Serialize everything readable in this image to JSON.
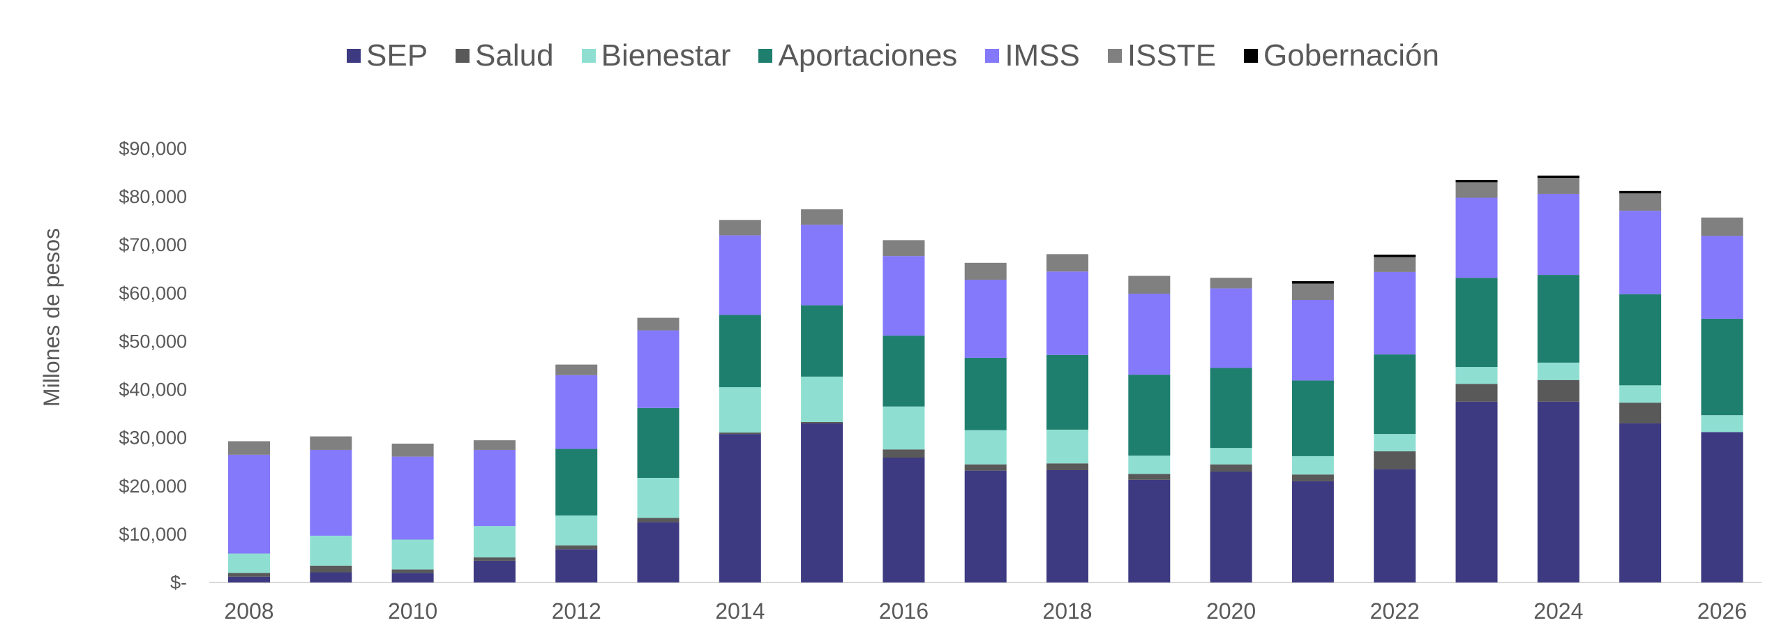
{
  "chart_data": {
    "type": "bar",
    "stacked": true,
    "title": "",
    "xlabel": "",
    "ylabel": "Millones de pesos",
    "ylim": [
      0,
      90000
    ],
    "yticks": [
      0,
      10000,
      20000,
      30000,
      40000,
      50000,
      60000,
      70000,
      80000,
      90000
    ],
    "ytick_labels": [
      "$-",
      "$10,000",
      "$20,000",
      "$30,000",
      "$40,000",
      "$50,000",
      "$60,000",
      "$70,000",
      "$80,000",
      "$90,000"
    ],
    "categories": [
      "2008",
      "2009",
      "2010",
      "2011",
      "2012",
      "2013",
      "2014",
      "2015",
      "2016",
      "2017",
      "2018",
      "2019",
      "2020",
      "2021",
      "2022",
      "2023",
      "2024",
      "2025",
      "2026"
    ],
    "xtick_labels": [
      "2008",
      "",
      "2010",
      "",
      "2012",
      "",
      "2014",
      "",
      "2016",
      "",
      "2018",
      "",
      "2020",
      "",
      "2022",
      "",
      "2024",
      "",
      "2026"
    ],
    "legend_position": "top",
    "grid": false,
    "series": [
      {
        "name": "SEP",
        "color": "#3D3A82",
        "values": [
          1200,
          2100,
          2000,
          4500,
          6900,
          12500,
          30800,
          33000,
          25900,
          23200,
          23300,
          21300,
          23000,
          21000,
          23500,
          37500,
          37500,
          33000,
          31200
        ]
      },
      {
        "name": "Salud",
        "color": "#595959",
        "values": [
          800,
          1400,
          700,
          700,
          800,
          900,
          300,
          300,
          1700,
          1300,
          1400,
          1200,
          1500,
          1400,
          3700,
          3700,
          4500,
          4300,
          0
        ]
      },
      {
        "name": "Bienestar",
        "color": "#8EDFD2",
        "values": [
          4000,
          6200,
          6200,
          6500,
          6200,
          8300,
          9400,
          9400,
          8900,
          7100,
          7000,
          3800,
          3400,
          3800,
          3600,
          3500,
          3600,
          3600,
          3500
        ]
      },
      {
        "name": "Aportaciones",
        "color": "#1F7F6E",
        "values": [
          0,
          0,
          0,
          0,
          13800,
          14500,
          15000,
          14800,
          14700,
          15000,
          15500,
          16800,
          16600,
          15700,
          16500,
          18500,
          18200,
          18900,
          20000
        ]
      },
      {
        "name": "IMSS",
        "color": "#8479FA",
        "values": [
          20500,
          17800,
          17200,
          15800,
          15300,
          16100,
          16500,
          16700,
          16500,
          16200,
          17300,
          16800,
          16500,
          16700,
          17100,
          16600,
          16800,
          17300,
          17200
        ]
      },
      {
        "name": "ISSTE",
        "color": "#808080",
        "values": [
          2800,
          2800,
          2700,
          2000,
          2200,
          2600,
          3200,
          3200,
          3300,
          3500,
          3600,
          3700,
          2200,
          3400,
          3100,
          3200,
          3300,
          3600,
          3800
        ]
      },
      {
        "name": "Gobernación",
        "color": "#000000",
        "values": [
          0,
          0,
          0,
          0,
          0,
          0,
          0,
          0,
          0,
          0,
          0,
          0,
          0,
          500,
          500,
          500,
          500,
          500,
          0
        ]
      }
    ]
  }
}
